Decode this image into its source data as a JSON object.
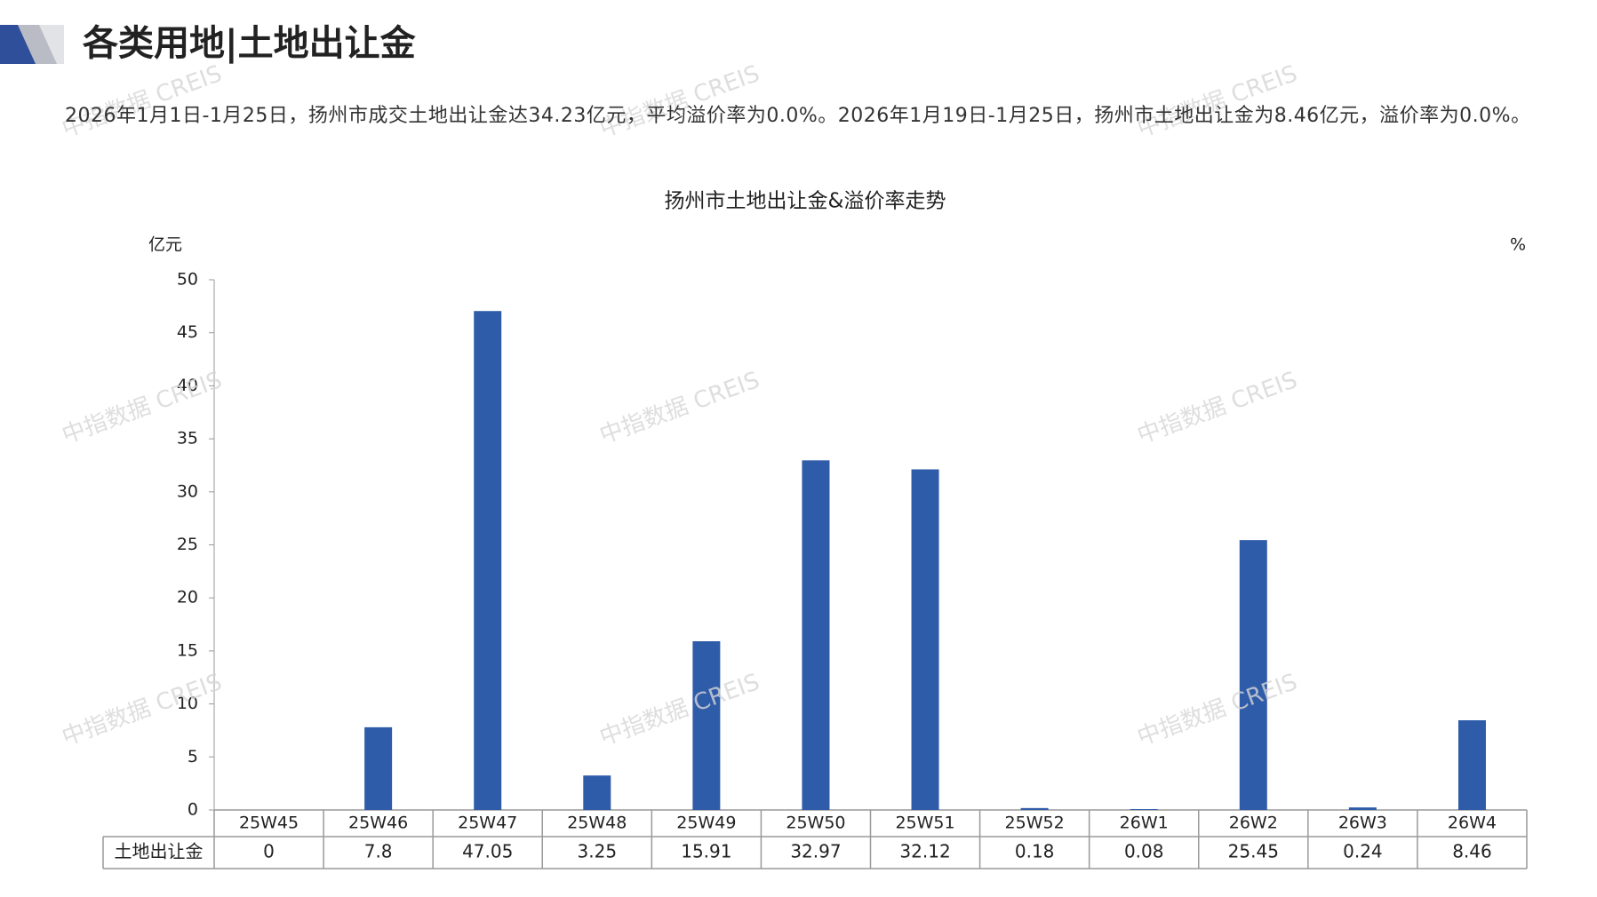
{
  "header": {
    "title": "各类用地|土地出让金"
  },
  "summary": "2026年1月1日-1月25日，扬州市成交土地出让金达34.23亿元，平均溢价率为0.0%。2026年1月19日-1月25日，扬州市土地出让金为8.46亿元，溢价率为0.0%。",
  "watermark": "中指数据 CREIS",
  "chart_data": {
    "type": "bar",
    "title": "扬州市土地出让金&溢价率走势",
    "y_label": "亿元",
    "y2_label": "%",
    "categories": [
      "25W45",
      "25W46",
      "25W47",
      "25W48",
      "25W49",
      "25W50",
      "25W51",
      "25W52",
      "26W1",
      "26W2",
      "26W3",
      "26W4"
    ],
    "series": [
      {
        "name": "土地出让金",
        "color": "#2f5ca8",
        "values": [
          0,
          7.8,
          47.05,
          3.25,
          15.91,
          32.97,
          32.12,
          0.18,
          0.08,
          25.45,
          0.24,
          8.46
        ]
      }
    ],
    "ylim": [
      0,
      50
    ],
    "yticks": [
      0,
      5,
      10,
      15,
      20,
      25,
      30,
      35,
      40,
      45,
      50
    ],
    "grid": false
  }
}
